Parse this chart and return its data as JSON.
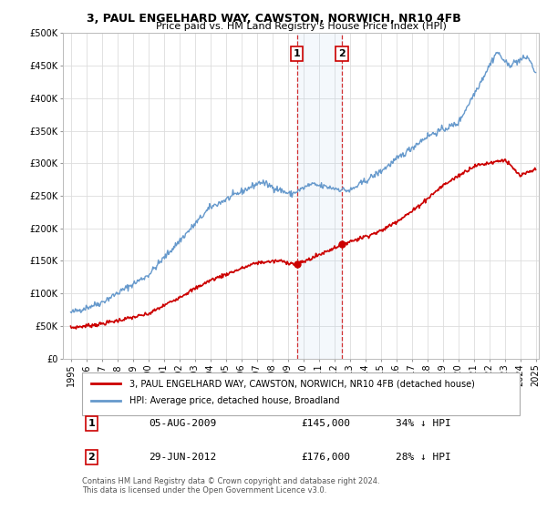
{
  "title": "3, PAUL ENGELHARD WAY, CAWSTON, NORWICH, NR10 4FB",
  "subtitle": "Price paid vs. HM Land Registry's House Price Index (HPI)",
  "legend_label_red": "3, PAUL ENGELHARD WAY, CAWSTON, NORWICH, NR10 4FB (detached house)",
  "legend_label_blue": "HPI: Average price, detached house, Broadland",
  "annotation1_label": "1",
  "annotation1_date": "05-AUG-2009",
  "annotation1_price": "£145,000",
  "annotation1_hpi": "34% ↓ HPI",
  "annotation2_label": "2",
  "annotation2_date": "29-JUN-2012",
  "annotation2_price": "£176,000",
  "annotation2_hpi": "28% ↓ HPI",
  "footnote": "Contains HM Land Registry data © Crown copyright and database right 2024.\nThis data is licensed under the Open Government Licence v3.0.",
  "ylim": [
    0,
    500000
  ],
  "red_color": "#cc0000",
  "blue_color": "#6699cc",
  "sale1_x": 2009.59,
  "sale1_y": 145000,
  "sale2_x": 2012.49,
  "sale2_y": 176000,
  "vspan_x1": 2009.59,
  "vspan_x2": 2012.49,
  "xmin": 1995,
  "xmax": 2025
}
